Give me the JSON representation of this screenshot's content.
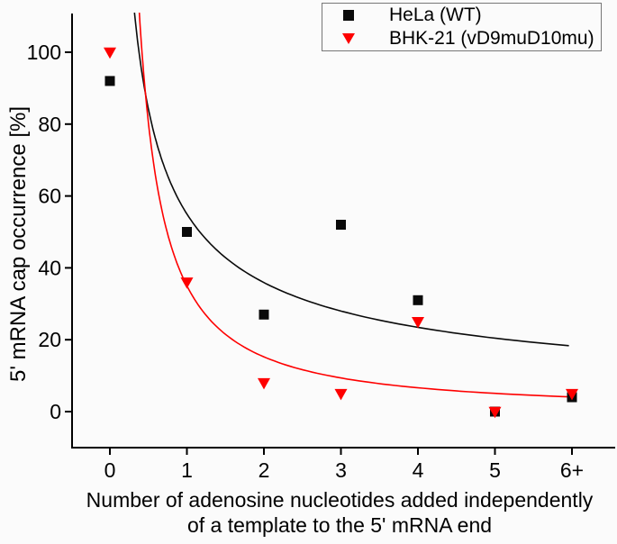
{
  "figure": {
    "background": "#fbfbfb",
    "text_color": "#000000",
    "xlabel_line1": "Number of adenosine nucleotides added independently",
    "xlabel_line2": "of a template to the 5' mRNA end",
    "ylabel": "5' mRNA cap occurrence [%]"
  },
  "legend": {
    "position": "top-right",
    "items": [
      {
        "label": "HeLa (WT)",
        "marker": "square-icon",
        "color": "#0a0a0a"
      },
      {
        "label": "BHK-21 (vD9muD10mu)",
        "marker": "triangle-down-icon",
        "color": "#fe0000"
      }
    ]
  },
  "chart_data": {
    "type": "scatter",
    "title": "",
    "xlabel": "Number of adenosine nucleotides added independently of a template to the 5' mRNA end",
    "ylabel": "5' mRNA cap occurrence [%]",
    "categories": [
      "0",
      "1",
      "2",
      "3",
      "4",
      "5",
      "6+"
    ],
    "x_numeric": [
      0,
      1,
      2,
      3,
      4,
      5,
      6
    ],
    "series": [
      {
        "name": "HeLa (WT)",
        "color": "#0a0a0a",
        "marker": "square",
        "values": [
          92,
          50,
          27,
          52,
          31,
          0,
          4
        ],
        "fit_curve": {
          "model": "power y=a*x^-b",
          "a": 55,
          "b": 0.615,
          "x_end": 5.96
        }
      },
      {
        "name": "BHK-21 (vD9muD10mu)",
        "color": "#fe0000",
        "marker": "triangle-down",
        "values": [
          100,
          36,
          8,
          5,
          25,
          0,
          5
        ],
        "fit_curve": {
          "model": "power y=a*x^-b",
          "a": 35,
          "b": 1.2,
          "x_end": 6.0
        }
      }
    ],
    "y_ticks": [
      0,
      20,
      40,
      60,
      80,
      100
    ],
    "ylim": [
      -10,
      111
    ],
    "grid": false,
    "legend_position": "top-right"
  }
}
